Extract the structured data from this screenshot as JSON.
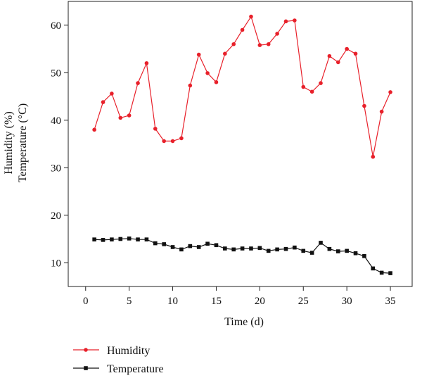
{
  "chart_data": {
    "type": "line",
    "xlabel": "Time (d)",
    "ylabel_lines": [
      "Humidity (%)",
      "Temperature (°C)"
    ],
    "xlim": [
      -2,
      37.5
    ],
    "ylim": [
      5,
      65
    ],
    "xticks": [
      0,
      5,
      10,
      15,
      20,
      25,
      30,
      35
    ],
    "yticks": [
      10,
      20,
      30,
      40,
      50,
      60
    ],
    "grid": false,
    "legend_position": "bottom-left",
    "series": [
      {
        "name": "Humidity",
        "color": "#e8202a",
        "marker": "circle",
        "x": [
          1,
          2,
          3,
          4,
          5,
          6,
          7,
          8,
          9,
          10,
          11,
          12,
          13,
          14,
          15,
          16,
          17,
          18,
          19,
          20,
          21,
          22,
          23,
          24,
          25,
          26,
          27,
          28,
          29,
          30,
          31,
          32,
          33,
          34,
          35
        ],
        "values": [
          38.0,
          43.8,
          45.6,
          40.5,
          41.0,
          47.8,
          52.0,
          38.2,
          35.6,
          35.6,
          36.2,
          47.3,
          53.8,
          49.9,
          48.0,
          54.0,
          56.0,
          59.0,
          61.8,
          55.8,
          56.0,
          58.2,
          60.8,
          61.0,
          47.0,
          46.0,
          47.8,
          53.5,
          52.2,
          55.0,
          54.0,
          43.0,
          32.3,
          41.8,
          45.9
        ]
      },
      {
        "name": "Temperature",
        "color": "#111111",
        "marker": "square",
        "x": [
          1,
          2,
          3,
          4,
          5,
          6,
          7,
          8,
          9,
          10,
          11,
          12,
          13,
          14,
          15,
          16,
          17,
          18,
          19,
          20,
          21,
          22,
          23,
          24,
          25,
          26,
          27,
          28,
          29,
          30,
          31,
          32,
          33,
          34,
          35
        ],
        "values": [
          14.9,
          14.8,
          14.9,
          15.0,
          15.1,
          14.9,
          14.9,
          14.1,
          13.9,
          13.3,
          12.8,
          13.5,
          13.3,
          14.0,
          13.7,
          13.0,
          12.8,
          13.0,
          13.0,
          13.1,
          12.5,
          12.8,
          12.9,
          13.2,
          12.5,
          12.1,
          14.2,
          12.9,
          12.4,
          12.5,
          12.0,
          11.4,
          8.8,
          7.9,
          7.8
        ]
      }
    ]
  }
}
